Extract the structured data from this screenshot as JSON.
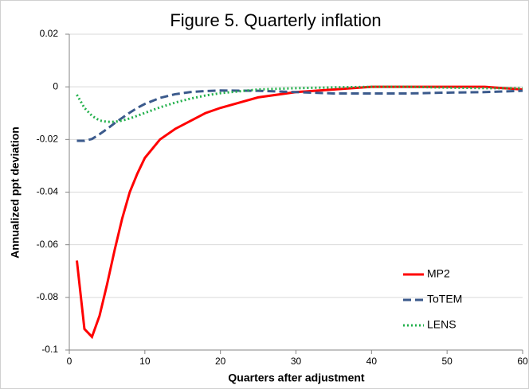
{
  "chart_data": {
    "type": "line",
    "title": "Figure 5.  Quarterly inflation",
    "x_label": "Quarters after adjustment",
    "y_label": "Annualized ppt deviation",
    "x": [
      1,
      2,
      3,
      4,
      5,
      6,
      7,
      8,
      9,
      10,
      12,
      14,
      16,
      18,
      20,
      25,
      30,
      35,
      40,
      45,
      50,
      55,
      60
    ],
    "series": [
      {
        "name": "MP2",
        "color": "#ff0000",
        "style": "solid",
        "values": [
          -0.066,
          -0.092,
          -0.095,
          -0.087,
          -0.075,
          -0.062,
          -0.05,
          -0.04,
          -0.033,
          -0.027,
          -0.02,
          -0.016,
          -0.013,
          -0.01,
          -0.008,
          -0.004,
          -0.002,
          -0.001,
          0,
          0,
          0,
          0,
          -0.001
        ]
      },
      {
        "name": "ToTEM",
        "color": "#3b5a8c",
        "style": "dashed",
        "values": [
          -0.0205,
          -0.0205,
          -0.0198,
          -0.018,
          -0.016,
          -0.0138,
          -0.0118,
          -0.0098,
          -0.008,
          -0.0065,
          -0.0042,
          -0.0028,
          -0.002,
          -0.0016,
          -0.0014,
          -0.0015,
          -0.002,
          -0.0025,
          -0.0025,
          -0.0025,
          -0.0022,
          -0.002,
          -0.0015
        ]
      },
      {
        "name": "LENS",
        "color": "#22b04b",
        "style": "dotted",
        "values": [
          -0.003,
          -0.008,
          -0.011,
          -0.0128,
          -0.0133,
          -0.0133,
          -0.0128,
          -0.012,
          -0.011,
          -0.0099,
          -0.0078,
          -0.006,
          -0.0045,
          -0.0033,
          -0.0024,
          -0.001,
          -0.0005,
          -0.0002,
          0,
          0,
          -0.0003,
          -0.0005,
          -0.0005
        ]
      }
    ],
    "xlim": [
      0,
      60
    ],
    "xticks": [
      0,
      10,
      20,
      30,
      40,
      50,
      60
    ],
    "ylim": [
      -0.1,
      0.02
    ],
    "yticks": [
      -0.1,
      -0.08,
      -0.06,
      -0.04,
      -0.02,
      0,
      0.02
    ],
    "grid": true,
    "legend": "lower right"
  }
}
